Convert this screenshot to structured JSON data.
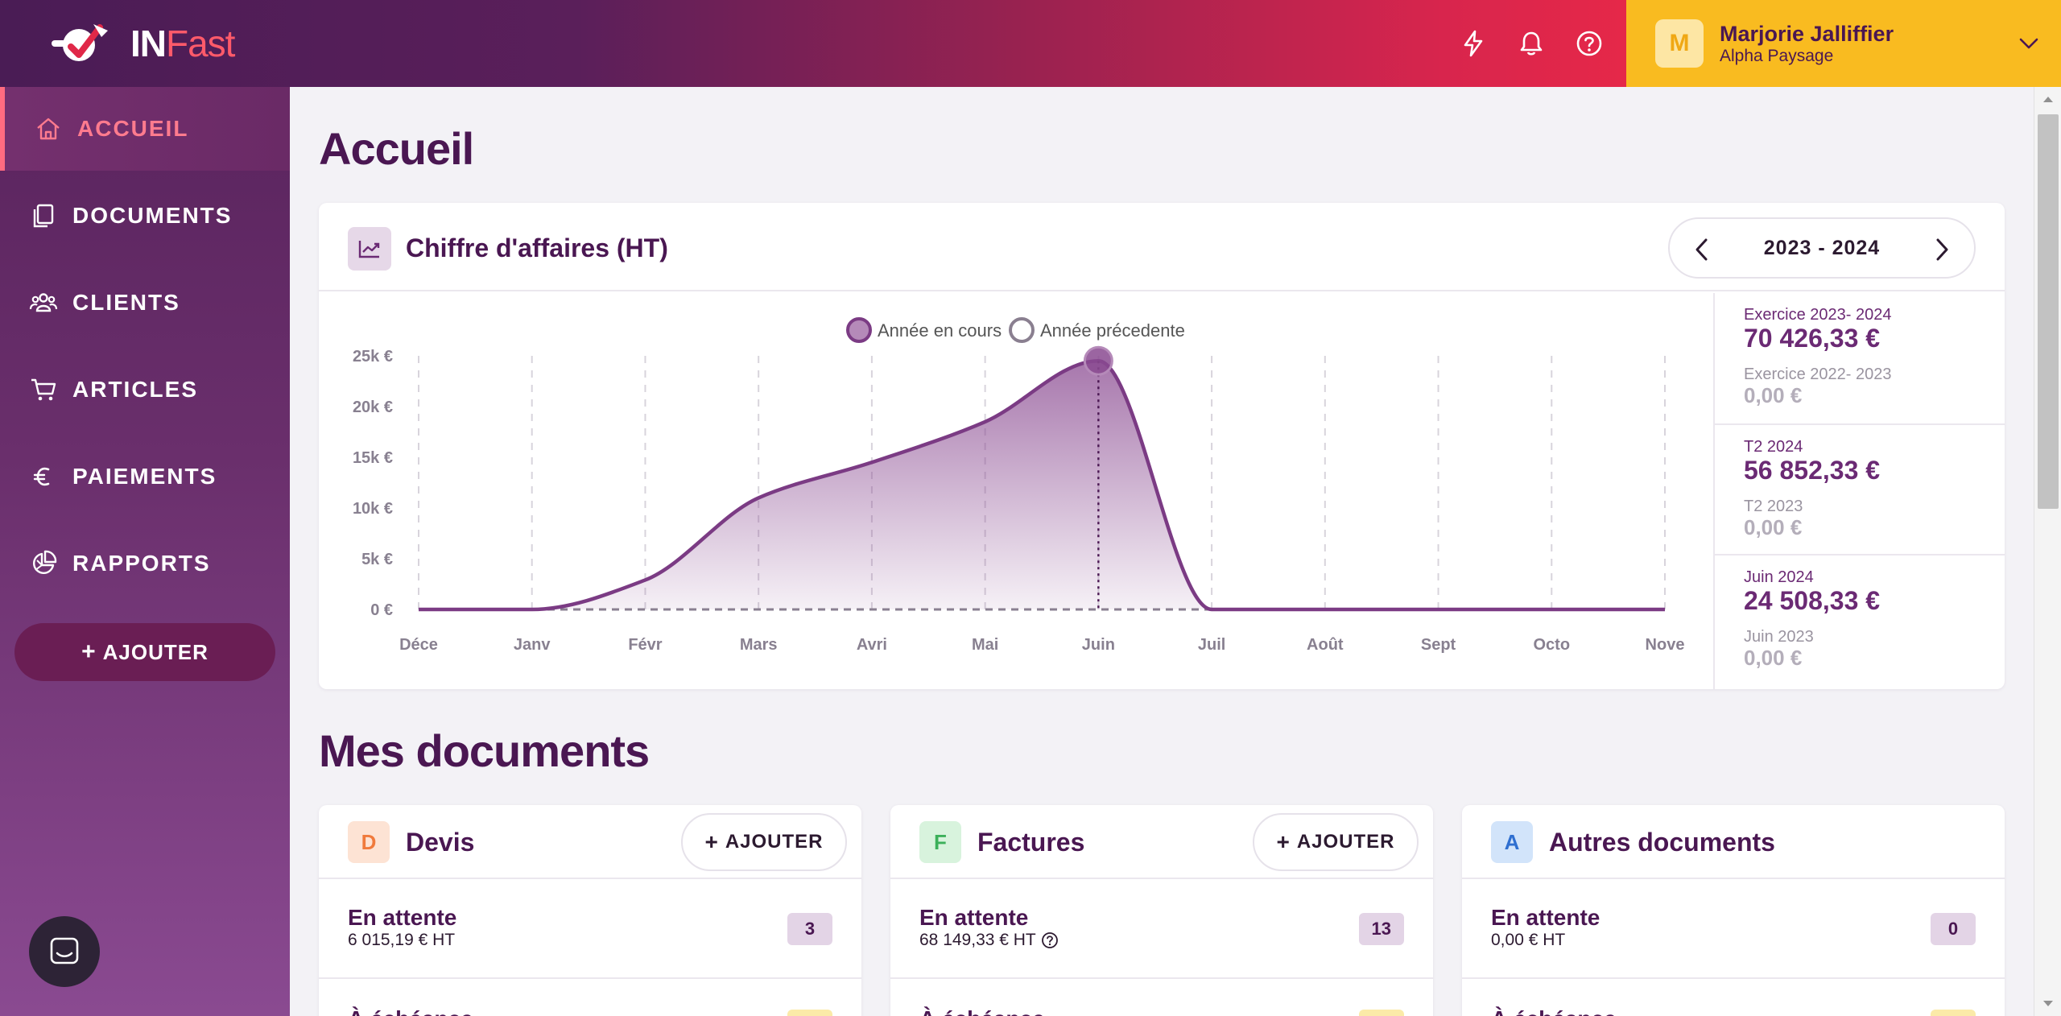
{
  "brand": {
    "name_part1": "IN",
    "name_part2": "Fast"
  },
  "header": {
    "icons": [
      "lightning-icon",
      "bell-icon",
      "help-icon"
    ],
    "user": {
      "initial": "M",
      "name": "Marjorie Jalliffier",
      "company": "Alpha Paysage"
    }
  },
  "sidebar": {
    "items": [
      {
        "label": "ACCUEIL",
        "icon": "home-icon",
        "active": true
      },
      {
        "label": "DOCUMENTS",
        "icon": "documents-icon",
        "active": false
      },
      {
        "label": "CLIENTS",
        "icon": "users-icon",
        "active": false
      },
      {
        "label": "ARTICLES",
        "icon": "cart-icon",
        "active": false
      },
      {
        "label": "PAIEMENTS",
        "icon": "euro-icon",
        "active": false
      },
      {
        "label": "RAPPORTS",
        "icon": "pie-chart-icon",
        "active": false
      }
    ],
    "add_label": "AJOUTER"
  },
  "main": {
    "title": "Accueil",
    "revenue_card": {
      "title": "Chiffre d'affaires (HT)",
      "year_range": "2023 - 2024",
      "stats": [
        {
          "current_label": "Exercice 2023- 2024",
          "current_value": "70 426,33 €",
          "previous_label": "Exercice 2022- 2023",
          "previous_value": "0,00 €"
        },
        {
          "current_label": "T2 2024",
          "current_value": "56 852,33 €",
          "previous_label": "T2 2023",
          "previous_value": "0,00 €"
        },
        {
          "current_label": "Juin 2024",
          "current_value": "24 508,33 €",
          "previous_label": "Juin 2023",
          "previous_value": "0,00 €"
        }
      ]
    },
    "documents_title": "Mes documents",
    "documents": [
      {
        "letter": "D",
        "name": "Devis",
        "add_label": "AJOUTER",
        "has_add": true,
        "pending_label": "En attente",
        "pending_amount": "6 015,19 € HT",
        "pending_count": "3",
        "has_info": false,
        "next_label": "À échéance",
        "letter_bg": "#fde3d4",
        "letter_color": "#f07a3c"
      },
      {
        "letter": "F",
        "name": "Factures",
        "add_label": "AJOUTER",
        "has_add": true,
        "pending_label": "En attente",
        "pending_amount": "68 149,33 € HT",
        "pending_count": "13",
        "has_info": true,
        "next_label": "À échéance",
        "letter_bg": "#d8f3dd",
        "letter_color": "#3cb05a"
      },
      {
        "letter": "A",
        "name": "Autres documents",
        "add_label": "",
        "has_add": false,
        "pending_label": "En attente",
        "pending_amount": "0,00 € HT",
        "pending_count": "0",
        "has_info": false,
        "next_label": "À échéance",
        "letter_bg": "#d2e4fa",
        "letter_color": "#2f6fd0"
      }
    ]
  },
  "chart_data": {
    "type": "area",
    "categories": [
      "Déce",
      "Janv",
      "Févr",
      "Mars",
      "Avri",
      "Mai",
      "Juin",
      "Juil",
      "Août",
      "Sept",
      "Octo",
      "Nove"
    ],
    "series": [
      {
        "name": "Année en cours",
        "values": [
          0,
          0,
          2900,
          11000,
          14500,
          18500,
          24508.33,
          0,
          0,
          0,
          0,
          0
        ],
        "color": "#7b3b84"
      },
      {
        "name": "Année précedente",
        "values": [
          0,
          0,
          0,
          0,
          0,
          0,
          0,
          0,
          0,
          0,
          0,
          0
        ],
        "color": "#8a7f90"
      }
    ],
    "y_ticks": [
      "0 €",
      "5k €",
      "10k €",
      "15k €",
      "20k €",
      "25k €"
    ],
    "ylim": [
      0,
      25000
    ],
    "highlight_index": 6,
    "legend_position": "top-center",
    "grid": "vertical-dashed"
  }
}
